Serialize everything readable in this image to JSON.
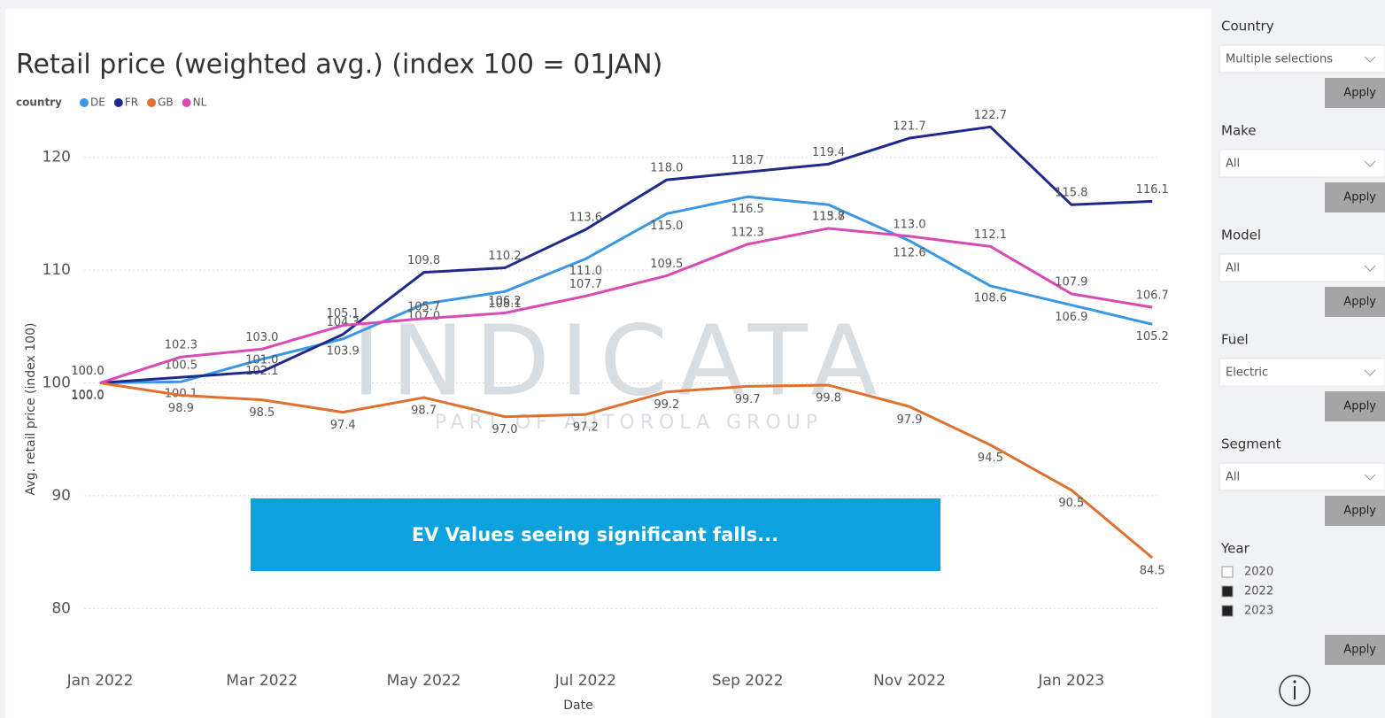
{
  "chart_data": {
    "type": "line",
    "title": "Retail price (weighted avg.) (index 100 = 01JAN)",
    "legend_title": "country",
    "xlabel": "Date",
    "ylabel": "Avg. retail price (index 100)",
    "categories": [
      "Jan 2022",
      null,
      "Mar 2022",
      null,
      "May 2022",
      null,
      "Jul 2022",
      null,
      "Sep 2022",
      null,
      "Nov 2022",
      null,
      "Jan 2023",
      null
    ],
    "series": [
      {
        "name": "DE",
        "color": "#3a97e4",
        "values": [
          100.0,
          100.1,
          102.1,
          103.9,
          107.0,
          108.1,
          111.0,
          115.0,
          116.5,
          115.8,
          112.6,
          108.6,
          106.9,
          105.2
        ],
        "value_labels": [
          "100.0",
          "100.1",
          "102.1",
          "103.9",
          "107.0",
          "108.1",
          "111.0",
          "115.0",
          "116.5",
          "115.8",
          "112.6",
          "108.6",
          "106.9",
          "105.2"
        ]
      },
      {
        "name": "FR",
        "color": "#1f2a8c",
        "values": [
          100.0,
          100.5,
          101.0,
          104.3,
          109.8,
          110.2,
          113.6,
          118.0,
          118.7,
          119.4,
          121.7,
          122.7,
          115.8,
          116.1
        ],
        "value_labels": [
          "100.0",
          "100.5",
          "101.0",
          "104.3",
          "109.8",
          "110.2",
          "113.6",
          "118.0",
          "118.7",
          "119.4",
          "121.7",
          "122.7",
          "115.8",
          "116.1"
        ]
      },
      {
        "name": "GB",
        "color": "#e0702f",
        "values": [
          100.0,
          98.9,
          98.5,
          97.4,
          98.7,
          97.0,
          97.2,
          99.2,
          99.7,
          99.8,
          97.9,
          94.5,
          90.5,
          84.5
        ],
        "value_labels": [
          "100.0",
          "98.9",
          "98.5",
          "97.4",
          "98.7",
          "97.0",
          "97.2",
          "99.2",
          "99.7",
          "99.8",
          "97.9",
          "94.5",
          "90.5",
          "84.5"
        ]
      },
      {
        "name": "NL",
        "color": "#d94bb4",
        "values": [
          100.0,
          102.3,
          103.0,
          105.1,
          105.7,
          106.2,
          107.7,
          109.5,
          112.3,
          113.7,
          113.0,
          112.1,
          107.9,
          106.7
        ],
        "value_labels": [
          "100.0",
          "102.3",
          "103.0",
          "105.1",
          "105.7",
          "106.2",
          "107.7",
          "109.5",
          "112.3",
          "113.7",
          "113.0",
          "112.1",
          "107.9",
          "106.7"
        ]
      }
    ],
    "ylim": [
      75,
      125
    ],
    "yticks": [
      80,
      90,
      100,
      110,
      120
    ],
    "grid": true,
    "annotation": "EV Values seeing significant falls...",
    "watermark": {
      "brand": "INDICATA",
      "tagline": "PART OF AUTOROLA GROUP"
    }
  },
  "slicers": [
    {
      "label": "Country",
      "value": "Multiple selections",
      "button": "Apply"
    },
    {
      "label": "Make",
      "value": "All",
      "button": "Apply"
    },
    {
      "label": "Model",
      "value": "All",
      "button": "Apply"
    },
    {
      "label": "Fuel",
      "value": "Electric",
      "button": "Apply"
    },
    {
      "label": "Segment",
      "value": "All",
      "button": "Apply"
    }
  ],
  "year_slicer": {
    "label": "Year",
    "options": [
      "2020",
      "2022",
      "2023"
    ],
    "checked": [
      false,
      true,
      true
    ],
    "button": "Apply"
  }
}
